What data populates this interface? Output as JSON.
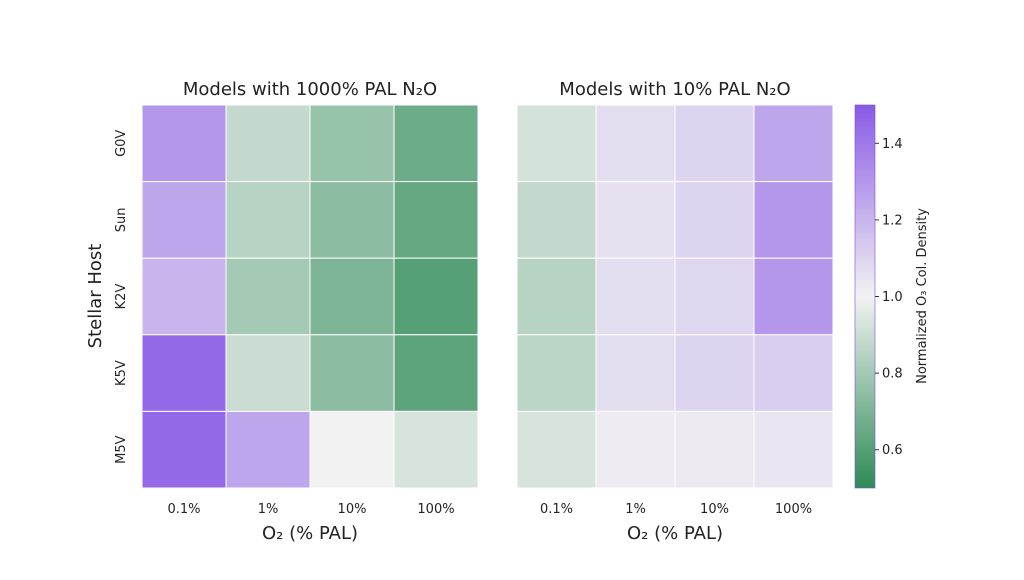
{
  "chart_data": [
    {
      "type": "heatmap",
      "title": "Models with 1000% PAL N₂O",
      "xlabel": "O₂ (% PAL)",
      "ylabel": "Stellar Host",
      "x": [
        "0.1%",
        "1%",
        "10%",
        "100%"
      ],
      "y": [
        "G0V",
        "Sun",
        "K2V",
        "K5V",
        "M5V"
      ],
      "values": [
        [
          1.3,
          0.88,
          0.77,
          0.66
        ],
        [
          1.25,
          0.85,
          0.74,
          0.64
        ],
        [
          1.2,
          0.8,
          0.7,
          0.6
        ],
        [
          1.45,
          0.9,
          0.74,
          0.62
        ],
        [
          1.45,
          1.25,
          1.0,
          0.93
        ]
      ]
    },
    {
      "type": "heatmap",
      "title": "Models with 10% PAL N₂O",
      "xlabel": "O₂ (% PAL)",
      "x": [
        "0.1%",
        "1%",
        "10%",
        "100%"
      ],
      "y": [
        "G0V",
        "Sun",
        "K2V",
        "K5V",
        "M5V"
      ],
      "values": [
        [
          0.92,
          1.07,
          1.1,
          1.25
        ],
        [
          0.88,
          1.06,
          1.1,
          1.3
        ],
        [
          0.85,
          1.07,
          1.09,
          1.3
        ],
        [
          0.86,
          1.07,
          1.1,
          1.12
        ],
        [
          0.93,
          1.02,
          1.03,
          1.04
        ]
      ]
    }
  ],
  "colorbar": {
    "label": "Normalized O₃ Col. Density",
    "range": [
      0.5,
      1.5
    ],
    "ticks": [
      "0.6",
      "0.8",
      "1.0",
      "1.2",
      "1.4"
    ],
    "tick_values": [
      0.6,
      0.8,
      1.0,
      1.2,
      1.4
    ],
    "color_low": "#2e8b57",
    "color_mid": "#f2f2f2",
    "color_high": "#8a5ae6"
  }
}
